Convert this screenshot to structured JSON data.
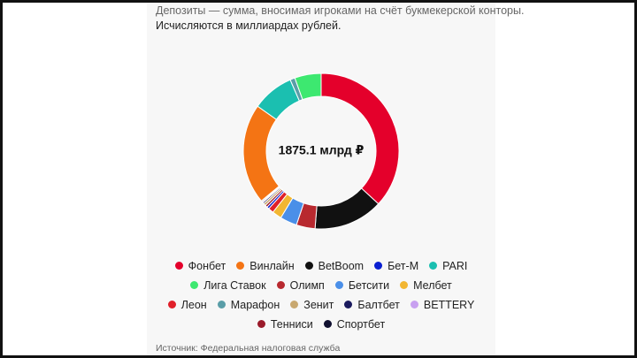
{
  "chart_data": {
    "type": "donut",
    "subtitle": "Депозиты — сумма, вносимая игроками на счёт букмекерской конторы.",
    "note": "Исчисляются в миллиардах рублей.",
    "center_label": "1875.1 млрд ₽",
    "source": "Источник: Федеральная налоговая служба",
    "categories": [
      "Фонбет",
      "Винлайн",
      "BetBoom",
      "Бет-М",
      "PARI",
      "Лига Ставок",
      "Олимп",
      "Бетсити",
      "Мелбет",
      "Леон",
      "Марафон",
      "Зенит",
      "Балтбет",
      "BETTERY",
      "Тенниси",
      "Спортбет"
    ],
    "values": [
      691,
      391,
      270,
      9,
      163,
      103,
      73,
      66,
      37,
      21,
      19,
      9,
      6,
      4,
      9,
      4
    ],
    "colors": [
      "#e4002b",
      "#f47414",
      "#111111",
      "#0a1fd1",
      "#1bbfb0",
      "#3de870",
      "#b8292f",
      "#4a8fe8",
      "#f2b632",
      "#e0202a",
      "#5a9ea8",
      "#c8a870",
      "#1a1a5e",
      "#c8a0f0",
      "#9a1a2a",
      "#101030"
    ]
  }
}
